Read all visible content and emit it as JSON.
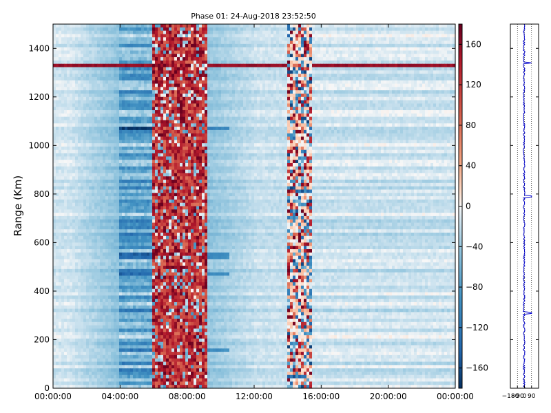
{
  "chart_data": [
    {
      "type": "heatmap",
      "title": "Phase 01: 24-Aug-2018 23:52:50",
      "xlabel": "",
      "ylabel": "Range (Km)",
      "x_ticks": [
        "00:00:00",
        "04:00:00",
        "08:00:00",
        "12:00:00",
        "16:00:00",
        "20:00:00",
        "00:00:00"
      ],
      "x_tick_hours": [
        0,
        4,
        8,
        12,
        16,
        20,
        24
      ],
      "xlim_hours": [
        0,
        24
      ],
      "y_ticks": [
        0,
        200,
        400,
        600,
        800,
        1000,
        1200,
        1400
      ],
      "ylim": [
        0,
        1500
      ],
      "colormap": "RdBu_r",
      "vmin": -180,
      "vmax": 180,
      "colorbar_ticks": [
        160,
        120,
        80,
        40,
        0,
        -40,
        -80,
        -120,
        -160
      ],
      "colorbar_labels": [
        "160",
        "120",
        "80",
        "40",
        "0",
        "−40",
        "−80",
        "−120",
        "−160"
      ],
      "regions": [
        {
          "name": "noisy-band-1",
          "hours": [
            6.0,
            9.2
          ],
          "level": "high positive, noisy"
        },
        {
          "name": "noisy-band-2",
          "hours": [
            13.9,
            15.5
          ],
          "level": "mixed, noisy"
        },
        {
          "name": "negative-band",
          "hours": [
            4.0,
            6.0
          ],
          "level": "moderate negative"
        }
      ],
      "highlight_rows_km": [
        1328,
        1070,
        545,
        465,
        155
      ]
    },
    {
      "type": "line",
      "title": "",
      "orientation": "vertical profile",
      "x_ticks": [
        "−180",
        "−90",
        "0",
        "90"
      ],
      "x_tick_values": [
        -180,
        -90,
        0,
        90
      ],
      "xlim": [
        -180,
        180
      ],
      "ylim": [
        0,
        1500
      ],
      "grid": "dotted vertical",
      "series_color": "#0000cc",
      "spikes_km": [
        1340,
        790,
        310
      ]
    }
  ]
}
